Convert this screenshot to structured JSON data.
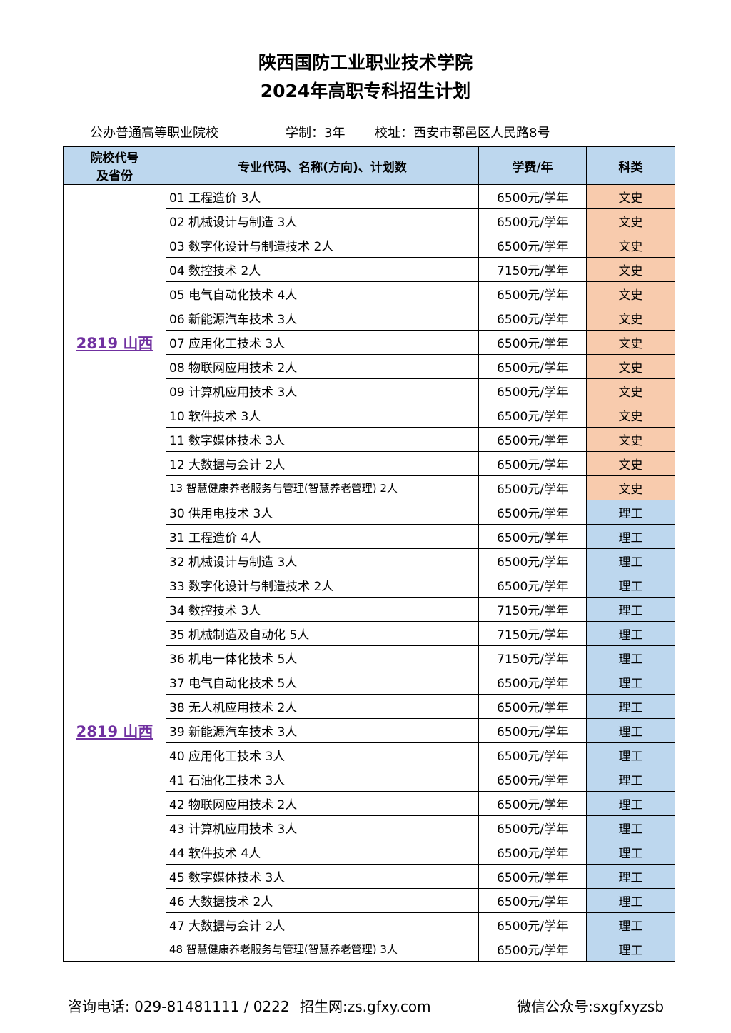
{
  "title_line1": "陕西国防工业职业技术学院",
  "title_line2": "2024年高职专科招生计划",
  "info": {
    "type": "公办普通高等职业院校",
    "duration": "学制：3年",
    "address": "校址：西安市鄠邑区人民路8号"
  },
  "headers": [
    "院校代号及省份",
    "专业代码、名称(方向)、计划数",
    "学费/年",
    "科类"
  ],
  "groups": [
    {
      "code": "2819 山西",
      "category": "文史",
      "rows": [
        [
          "01 工程造价 3人",
          "6500元/学年"
        ],
        [
          "02 机械设计与制造 3人",
          "6500元/学年"
        ],
        [
          "03 数字化设计与制造技术 2人",
          "6500元/学年"
        ],
        [
          "04 数控技术 2人",
          "7150元/学年"
        ],
        [
          "05 电气自动化技术 4人",
          "6500元/学年"
        ],
        [
          "06 新能源汽车技术 3人",
          "6500元/学年"
        ],
        [
          "07 应用化工技术 3人",
          "6500元/学年"
        ],
        [
          "08 物联网应用技术 2人",
          "6500元/学年"
        ],
        [
          "09 计算机应用技术 3人",
          "6500元/学年"
        ],
        [
          "10 软件技术 3人",
          "6500元/学年"
        ],
        [
          "11 数字媒体技术 3人",
          "6500元/学年"
        ],
        [
          "12 大数据与会计 2人",
          "6500元/学年"
        ],
        [
          "13 智慧健康养老服务与管理(智慧养老管理) 2人",
          "6500元/学年"
        ]
      ]
    },
    {
      "code": "2819 山西",
      "category": "理工",
      "rows": [
        [
          "30 供用电技术 3人",
          "6500元/学年"
        ],
        [
          "31 工程造价 4人",
          "6500元/学年"
        ],
        [
          "32 机械设计与制造 3人",
          "6500元/学年"
        ],
        [
          "33 数字化设计与制造技术 2人",
          "6500元/学年"
        ],
        [
          "34 数控技术 3人",
          "7150元/学年"
        ],
        [
          "35 机械制造及自动化 5人",
          "7150元/学年"
        ],
        [
          "36 机电一体化技术 5人",
          "7150元/学年"
        ],
        [
          "37 电气自动化技术 5人",
          "6500元/学年"
        ],
        [
          "38 无人机应用技术 2人",
          "6500元/学年"
        ],
        [
          "39 新能源汽车技术 3人",
          "6500元/学年"
        ],
        [
          "40 应用化工技术 3人",
          "6500元/学年"
        ],
        [
          "41 石油化工技术 3人",
          "6500元/学年"
        ],
        [
          "42 物联网应用技术 2人",
          "6500元/学年"
        ],
        [
          "43 计算机应用技术 3人",
          "6500元/学年"
        ],
        [
          "44 软件技术 4人",
          "6500元/学年"
        ],
        [
          "45 数字媒体技术 3人",
          "6500元/学年"
        ],
        [
          "46 大数据技术 2人",
          "6500元/学年"
        ],
        [
          "47 大数据与会计 2人",
          "6500元/学年"
        ],
        [
          "48 智慧健康养老服务与管理(智慧养老管理) 3人",
          "6500元/学年"
        ]
      ]
    }
  ],
  "colors": {
    "header": "#bdd7ee",
    "wenshi": "#f8cbad",
    "ligong": "#bdd7ee",
    "code_link": "#7030a0"
  },
  "footer": {
    "phone": "咨询电话: 029-81481111 / 0222",
    "site": "招生网:zs.gfxy.com",
    "wechat": "微信公众号:sxgfxyzsb"
  }
}
